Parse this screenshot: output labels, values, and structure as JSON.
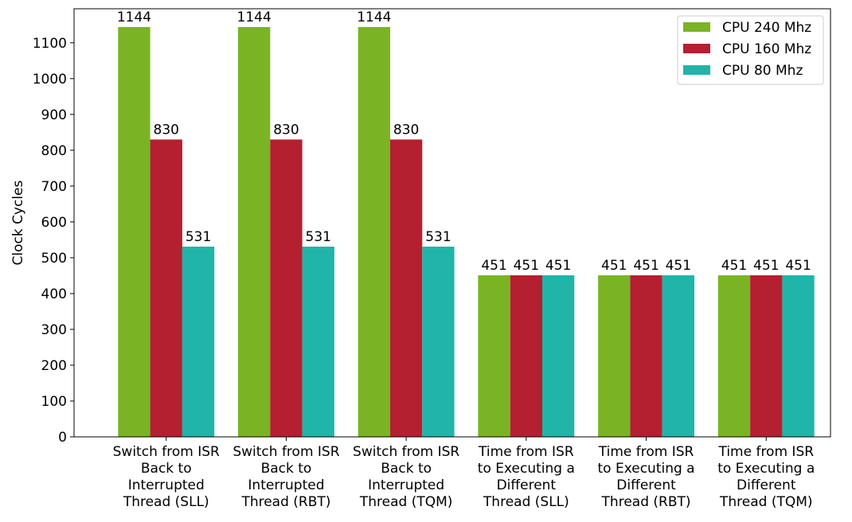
{
  "chart_data": {
    "type": "bar",
    "title": "",
    "xlabel": "",
    "ylabel": "Clock Cycles",
    "ylim": [
      0,
      1195
    ],
    "yticks": [
      0,
      100,
      200,
      300,
      400,
      500,
      600,
      700,
      800,
      900,
      1000,
      1100
    ],
    "grid": false,
    "legend_position": "top-right",
    "categories": [
      [
        "Switch from ISR",
        "Back to",
        "Interrupted",
        "Thread (SLL)"
      ],
      [
        "Switch from ISR",
        "Back to",
        "Interrupted",
        "Thread (RBT)"
      ],
      [
        "Switch from ISR",
        "Back to",
        "Interrupted",
        "Thread (TQM)"
      ],
      [
        "Time from ISR",
        "to Executing a",
        "Different",
        "Thread (SLL)"
      ],
      [
        "Time from ISR",
        "to Executing a",
        "Different",
        "Thread (RBT)"
      ],
      [
        "Time from ISR",
        "to Executing a",
        "Different",
        "Thread (TQM)"
      ]
    ],
    "series": [
      {
        "name": "CPU 240 Mhz",
        "color": "#7ab424",
        "values": [
          1144,
          1144,
          1144,
          451,
          451,
          451
        ]
      },
      {
        "name": "CPU 160 Mhz",
        "color": "#b42030",
        "values": [
          830,
          830,
          830,
          451,
          451,
          451
        ]
      },
      {
        "name": "CPU 80 Mhz",
        "color": "#21b4a9",
        "values": [
          531,
          531,
          531,
          451,
          451,
          451
        ]
      }
    ],
    "data_labels": true
  }
}
